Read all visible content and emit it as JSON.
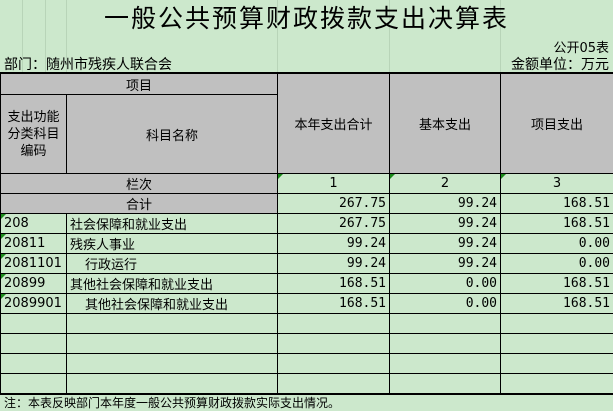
{
  "title": "一般公共预算财政拨款支出决算表",
  "form_no": "公开05表",
  "department": "部门：随州市残疾人联合会",
  "unit": "金额单位：万元",
  "header": {
    "item": "项目",
    "code": "支出功能分类科目编码",
    "name": "科目名称",
    "col1": "本年支出合计",
    "col2": "基本支出",
    "col3": "项目支出",
    "row_label": "栏次",
    "n1": "1",
    "n2": "2",
    "n3": "3"
  },
  "total": {
    "label": "合计",
    "v1": "267.75",
    "v2": "99.24",
    "v3": "168.51"
  },
  "rows": [
    {
      "code": "208",
      "name": "社会保障和就业支出",
      "v1": "267.75",
      "v2": "99.24",
      "v3": "168.51"
    },
    {
      "code": "20811",
      "name": "残疾人事业",
      "v1": "99.24",
      "v2": "99.24",
      "v3": "0.00"
    },
    {
      "code": "2081101",
      "name": "行政运行",
      "v1": "99.24",
      "v2": "99.24",
      "v3": "0.00"
    },
    {
      "code": "20899",
      "name": "其他社会保障和就业支出",
      "v1": "168.51",
      "v2": "0.00",
      "v3": "168.51"
    },
    {
      "code": "2089901",
      "name": "其他社会保障和就业支出",
      "v1": "168.51",
      "v2": "0.00",
      "v3": "168.51"
    }
  ],
  "note": "注：本表反映部门本年度一般公共预算财政拨款实际支出情况。",
  "colors": {
    "background": "#cce8cc",
    "header": "#c0c0c0"
  }
}
